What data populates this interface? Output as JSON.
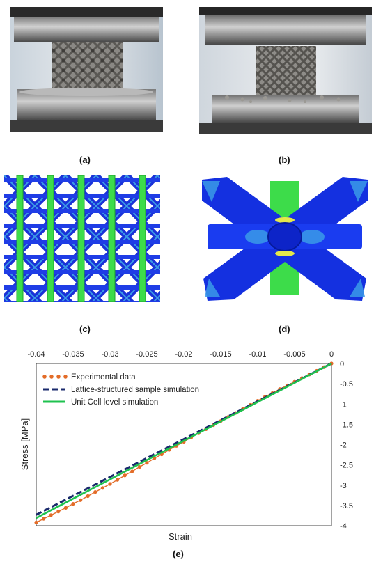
{
  "figure": {
    "captions": {
      "a": "(a)",
      "b": "(b)",
      "c": "(c)",
      "d": "(d)",
      "e": "(e)"
    }
  },
  "palette": {
    "fem_blue": "#1430e0",
    "fem_green": "#3ddc4a",
    "fem_cyan": "#3a9ae8",
    "lattice_grey": "#6e6c68",
    "platen_steel": "#5a5a5a"
  },
  "chart_data": {
    "type": "line",
    "xlabel": "Strain",
    "ylabel": "Stress [MPa]",
    "xlim": [
      -0.04,
      0
    ],
    "ylim": [
      -4,
      0
    ],
    "x_ticks": [
      "-0.04",
      "-0.035",
      "-0.03",
      "-0.025",
      "-0.02",
      "-0.015",
      "-0.01",
      "-0.005",
      "0"
    ],
    "y_ticks": [
      "0",
      "-0.5",
      "-1",
      "-1.5",
      "-2",
      "-2.5",
      "-3",
      "-3.5",
      "-4"
    ],
    "x_axis_position": "top",
    "y_axis_position": "right",
    "grid": false,
    "legend_position": "top-left",
    "series": [
      {
        "name": "Experimental data",
        "style": "dotted",
        "color": "#e36c28",
        "x": [
          0,
          -0.001,
          -0.002,
          -0.003,
          -0.004,
          -0.005,
          -0.006,
          -0.007,
          -0.008,
          -0.009,
          -0.01,
          -0.011,
          -0.012,
          -0.013,
          -0.014,
          -0.015,
          -0.016,
          -0.017,
          -0.018,
          -0.019,
          -0.02,
          -0.021,
          -0.022,
          -0.023,
          -0.024,
          -0.025,
          -0.026,
          -0.027,
          -0.028,
          -0.029,
          -0.03,
          -0.031,
          -0.032,
          -0.033,
          -0.034,
          -0.035,
          -0.036,
          -0.037,
          -0.038,
          -0.039,
          -0.04
        ],
        "y": [
          0,
          -0.09,
          -0.18,
          -0.27,
          -0.36,
          -0.45,
          -0.54,
          -0.63,
          -0.73,
          -0.82,
          -0.92,
          -1.02,
          -1.12,
          -1.22,
          -1.32,
          -1.42,
          -1.52,
          -1.62,
          -1.72,
          -1.82,
          -1.93,
          -2.03,
          -2.13,
          -2.24,
          -2.34,
          -2.45,
          -2.55,
          -2.66,
          -2.76,
          -2.87,
          -2.97,
          -3.07,
          -3.17,
          -3.27,
          -3.37,
          -3.46,
          -3.56,
          -3.65,
          -3.74,
          -3.83,
          -3.92
        ]
      },
      {
        "name": "Lattice-structured sample simulation",
        "style": "dashed",
        "color": "#1a2a6c",
        "x": [
          0,
          -0.04
        ],
        "y": [
          0,
          -3.73
        ]
      },
      {
        "name": "Unit Cell level simulation",
        "style": "solid",
        "color": "#1fc24f",
        "x": [
          0,
          -0.04
        ],
        "y": [
          0,
          -3.81
        ]
      }
    ]
  }
}
